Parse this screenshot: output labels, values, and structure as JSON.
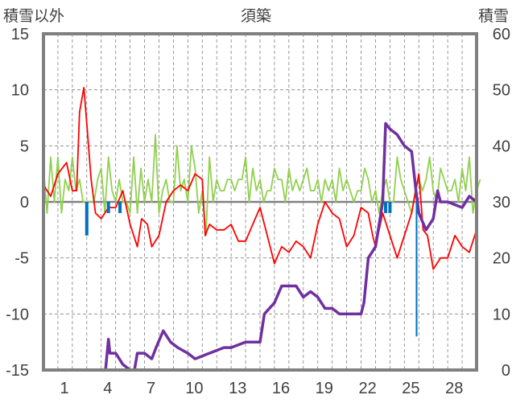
{
  "chart_data": {
    "type": "line",
    "title": "須築",
    "ylabel_left": "積雪以外",
    "ylabel_right": "積雪",
    "xlim": [
      0,
      30
    ],
    "ylim_left": [
      -15,
      15
    ],
    "ylim_right": [
      0,
      60
    ],
    "yticks_left": [
      "15",
      "10",
      "5",
      "0",
      "-5",
      "-10",
      "-15"
    ],
    "yticks_right": [
      "60",
      "50",
      "40",
      "30",
      "20",
      "10",
      "0"
    ],
    "xtick_labels": [
      {
        "day": 1,
        "label": "1"
      },
      {
        "day": 4,
        "label": "4"
      },
      {
        "day": 7,
        "label": "7"
      },
      {
        "day": 10,
        "label": "10"
      },
      {
        "day": 13,
        "label": "13"
      },
      {
        "day": 16,
        "label": "16"
      },
      {
        "day": 19,
        "label": "19"
      },
      {
        "day": 22,
        "label": "22"
      },
      {
        "day": 25,
        "label": "25"
      },
      {
        "day": 28,
        "label": "28"
      }
    ],
    "grid": true,
    "series": [
      {
        "name": "wind",
        "color": "#92d050",
        "axis": "left",
        "step": 0.25,
        "values": [
          3,
          -1,
          4,
          0,
          4,
          -1,
          2,
          1,
          4,
          1,
          2,
          0,
          0,
          0,
          0,
          2,
          3,
          -1,
          4,
          1,
          0,
          2,
          0,
          0,
          -1,
          4,
          -1,
          3,
          0,
          2,
          0,
          6,
          -1,
          1,
          2,
          0,
          0,
          5,
          1,
          2,
          0,
          5,
          3,
          -1,
          1,
          -3,
          4,
          0,
          2,
          1,
          1,
          2,
          2,
          1,
          2,
          2,
          4,
          0,
          3,
          1,
          2,
          0,
          1,
          1,
          3,
          2,
          2,
          0,
          3,
          1,
          2,
          1,
          2,
          3,
          1,
          1,
          2,
          0,
          2,
          1,
          2,
          0,
          3,
          1,
          2,
          1,
          0,
          1,
          1,
          3,
          2,
          0,
          1,
          -1,
          1,
          2,
          0,
          0,
          4,
          2,
          1,
          0,
          -1,
          1,
          2,
          1,
          2,
          4,
          1,
          0,
          3,
          2,
          1,
          1,
          2,
          0,
          3,
          1,
          4,
          -1,
          1,
          2
        ]
      },
      {
        "name": "temperature",
        "color": "#ff0000",
        "axis": "left",
        "points": [
          [
            0,
            1.5
          ],
          [
            0.5,
            0.5
          ],
          [
            1,
            2.5
          ],
          [
            1.3,
            3
          ],
          [
            1.6,
            3.5
          ],
          [
            2,
            1
          ],
          [
            2.3,
            1
          ],
          [
            2.5,
            8
          ],
          [
            2.8,
            10.2
          ],
          [
            3,
            7
          ],
          [
            3.3,
            2
          ],
          [
            3.6,
            -1
          ],
          [
            4,
            -1.5
          ],
          [
            4.5,
            -0.5
          ],
          [
            5,
            -0.5
          ],
          [
            5.5,
            1
          ],
          [
            6,
            -2
          ],
          [
            6.5,
            -4
          ],
          [
            6.8,
            -1.5
          ],
          [
            7.2,
            -2
          ],
          [
            7.5,
            -4
          ],
          [
            8,
            -3
          ],
          [
            8.5,
            0
          ],
          [
            9,
            1
          ],
          [
            9.5,
            1.5
          ],
          [
            10,
            1
          ],
          [
            10.5,
            2.5
          ],
          [
            11,
            2
          ],
          [
            11.2,
            -3
          ],
          [
            11.5,
            -2
          ],
          [
            12,
            -2.5
          ],
          [
            12.5,
            -2.5
          ],
          [
            13,
            -2
          ],
          [
            13.5,
            -3.5
          ],
          [
            14,
            -3.5
          ],
          [
            14.5,
            -2
          ],
          [
            15,
            -0.5
          ],
          [
            15.5,
            -3
          ],
          [
            16,
            -5.5
          ],
          [
            16.5,
            -4
          ],
          [
            17,
            -4.5
          ],
          [
            17.5,
            -3.5
          ],
          [
            18,
            -4
          ],
          [
            18.5,
            -5
          ],
          [
            19,
            -2
          ],
          [
            19.5,
            0
          ],
          [
            20,
            -1
          ],
          [
            20.5,
            -1.5
          ],
          [
            21,
            -4
          ],
          [
            21.5,
            -3
          ],
          [
            22,
            -0.5
          ],
          [
            22.5,
            -1
          ],
          [
            22.8,
            -3
          ],
          [
            23,
            -4
          ],
          [
            23.5,
            -1
          ],
          [
            24,
            -3
          ],
          [
            24.5,
            -5
          ],
          [
            25,
            -3
          ],
          [
            25.5,
            -1
          ],
          [
            26,
            2.5
          ],
          [
            26.3,
            -2.5
          ],
          [
            26.6,
            -3
          ],
          [
            27,
            -6
          ],
          [
            27.5,
            -5
          ],
          [
            28,
            -5
          ],
          [
            28.5,
            -3
          ],
          [
            29,
            -4
          ],
          [
            29.5,
            -4.5
          ],
          [
            30,
            -2.5
          ]
        ]
      },
      {
        "name": "snow_depth",
        "color": "#7030a0",
        "axis": "right",
        "points": [
          [
            0,
            0
          ],
          [
            4.3,
            0
          ],
          [
            4.5,
            5.5
          ],
          [
            4.6,
            3
          ],
          [
            5,
            3
          ],
          [
            5.5,
            1
          ],
          [
            6,
            0
          ],
          [
            6.3,
            0
          ],
          [
            6.5,
            3
          ],
          [
            7,
            3
          ],
          [
            7.5,
            2
          ],
          [
            7.8,
            4
          ],
          [
            8.3,
            7
          ],
          [
            8.8,
            5
          ],
          [
            9.3,
            4
          ],
          [
            10,
            3
          ],
          [
            10.5,
            2
          ],
          [
            11,
            2.5
          ],
          [
            12,
            3.5
          ],
          [
            12.5,
            4
          ],
          [
            13,
            4
          ],
          [
            14,
            5
          ],
          [
            15,
            5
          ],
          [
            15.3,
            10
          ],
          [
            16,
            12
          ],
          [
            16.5,
            15
          ],
          [
            17,
            15
          ],
          [
            17.5,
            15
          ],
          [
            18,
            13
          ],
          [
            18.5,
            14
          ],
          [
            19,
            13
          ],
          [
            19.5,
            11
          ],
          [
            20,
            11
          ],
          [
            20.5,
            10
          ],
          [
            21,
            10
          ],
          [
            22,
            10
          ],
          [
            22.2,
            12
          ],
          [
            22.5,
            20
          ],
          [
            23,
            22
          ],
          [
            23.5,
            30
          ],
          [
            23.7,
            44
          ],
          [
            24,
            43
          ],
          [
            24.5,
            42
          ],
          [
            25,
            40
          ],
          [
            25.5,
            39
          ],
          [
            25.8,
            32
          ],
          [
            26,
            28
          ],
          [
            26.5,
            25
          ],
          [
            27,
            27
          ],
          [
            27.3,
            32
          ],
          [
            27.5,
            30
          ],
          [
            28,
            30
          ],
          [
            29,
            29
          ],
          [
            29.5,
            31
          ],
          [
            30,
            30
          ]
        ]
      },
      {
        "name": "precipitation",
        "color": "#0070c0",
        "axis": "left",
        "type": "bar",
        "points": [
          [
            3,
            -3
          ],
          [
            4.5,
            -1
          ],
          [
            5.3,
            -1
          ],
          [
            23.7,
            -1
          ],
          [
            24,
            -1
          ],
          [
            25.9,
            -12
          ]
        ]
      }
    ]
  }
}
